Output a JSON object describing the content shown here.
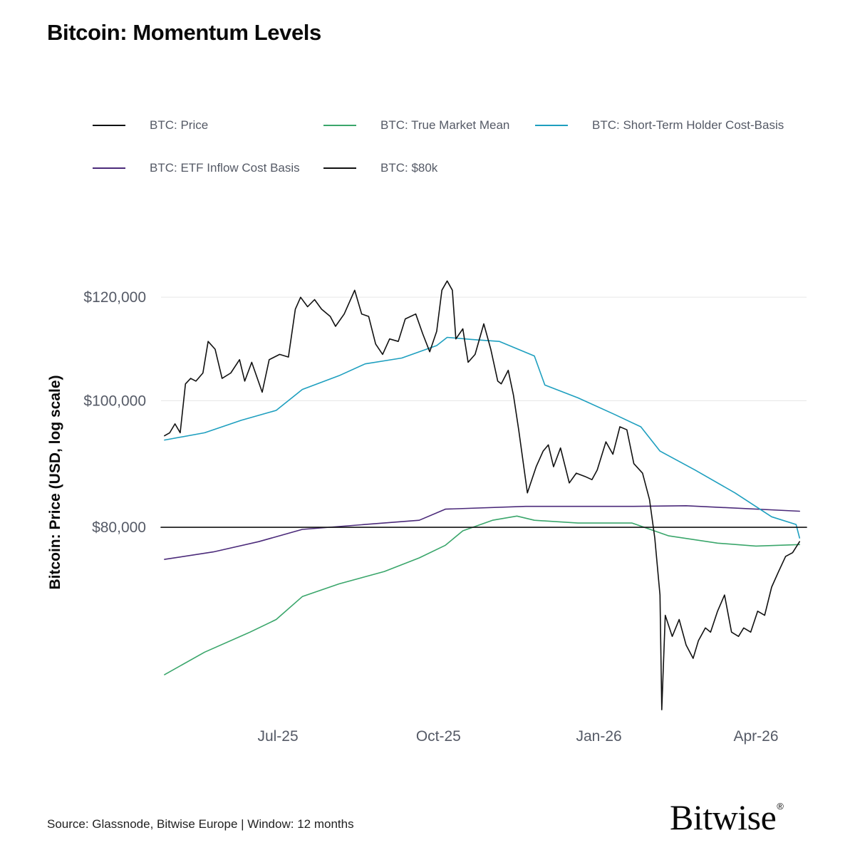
{
  "header": {
    "title": "Bitcoin: Momentum Levels"
  },
  "footer": {
    "source": "Source: Glassnode, Bitwise Europe | Window: 12 months",
    "logo": "Bitwise",
    "logo_mark": "®"
  },
  "colors": {
    "price": "#111111",
    "tmm": "#3aa66b",
    "sth": "#1e9fbf",
    "etf": "#4b2a7a",
    "level80k": "#111111",
    "grid": "#e6e6e6",
    "tick": "#555a66"
  },
  "legend": [
    {
      "label": "BTC: Price",
      "color": "#111111"
    },
    {
      "label": "BTC: True Market Mean",
      "color": "#3aa66b"
    },
    {
      "label": "BTC: Short-Term Holder Cost-Basis",
      "color": "#1e9fbf"
    },
    {
      "label": "BTC: ETF Inflow Cost Basis",
      "color": "#4b2a7a"
    },
    {
      "label": "BTC: $80k",
      "color": "#111111"
    }
  ],
  "chart_data": {
    "type": "line",
    "title": "Bitcoin: Momentum Levels",
    "xlabel": "",
    "ylabel": "Bitcoin: Price (USD, log scale)",
    "y_scale": "log",
    "ylim": [
      57000,
      127000
    ],
    "xlim": [
      "2025-04-25",
      "2026-04-30"
    ],
    "grid": true,
    "legend_position": "top",
    "x_ticks": [
      {
        "date": "2025-07-01",
        "label": "Jul-25"
      },
      {
        "date": "2025-10-01",
        "label": "Oct-25"
      },
      {
        "date": "2026-01-01",
        "label": "Jan-26"
      },
      {
        "date": "2026-04-01",
        "label": "Apr-26"
      }
    ],
    "y_ticks": [
      {
        "value": 80000,
        "label": "$80,000"
      },
      {
        "value": 100000,
        "label": "$100,000"
      },
      {
        "value": 120000,
        "label": "$120,000"
      }
    ],
    "series": [
      {
        "name": "BTC: Price",
        "key": "price",
        "points": [
          [
            "2025-04-27",
            94000
          ],
          [
            "2025-04-30",
            94500
          ],
          [
            "2025-05-03",
            96000
          ],
          [
            "2025-05-06",
            94500
          ],
          [
            "2025-05-09",
            103000
          ],
          [
            "2025-05-12",
            104000
          ],
          [
            "2025-05-15",
            103500
          ],
          [
            "2025-05-19",
            105000
          ],
          [
            "2025-05-22",
            111000
          ],
          [
            "2025-05-26",
            109500
          ],
          [
            "2025-05-30",
            104000
          ],
          [
            "2025-06-04",
            105000
          ],
          [
            "2025-06-09",
            107500
          ],
          [
            "2025-06-12",
            103500
          ],
          [
            "2025-06-16",
            107000
          ],
          [
            "2025-06-22",
            101500
          ],
          [
            "2025-06-26",
            107500
          ],
          [
            "2025-07-02",
            108500
          ],
          [
            "2025-07-07",
            108000
          ],
          [
            "2025-07-11",
            117500
          ],
          [
            "2025-07-14",
            120000
          ],
          [
            "2025-07-18",
            118000
          ],
          [
            "2025-07-22",
            119500
          ],
          [
            "2025-07-26",
            117500
          ],
          [
            "2025-07-31",
            116000
          ],
          [
            "2025-08-03",
            114000
          ],
          [
            "2025-08-08",
            116500
          ],
          [
            "2025-08-14",
            121500
          ],
          [
            "2025-08-18",
            116500
          ],
          [
            "2025-08-22",
            116000
          ],
          [
            "2025-08-26",
            110500
          ],
          [
            "2025-08-30",
            108500
          ],
          [
            "2025-09-03",
            111500
          ],
          [
            "2025-09-08",
            111000
          ],
          [
            "2025-09-12",
            115500
          ],
          [
            "2025-09-18",
            116500
          ],
          [
            "2025-09-22",
            112500
          ],
          [
            "2025-09-26",
            109000
          ],
          [
            "2025-09-30",
            113000
          ],
          [
            "2025-10-03",
            121500
          ],
          [
            "2025-10-06",
            123500
          ],
          [
            "2025-10-09",
            121500
          ],
          [
            "2025-10-11",
            111500
          ],
          [
            "2025-10-15",
            113500
          ],
          [
            "2025-10-18",
            107000
          ],
          [
            "2025-10-22",
            108500
          ],
          [
            "2025-10-27",
            114500
          ],
          [
            "2025-10-31",
            109500
          ],
          [
            "2025-11-04",
            103500
          ],
          [
            "2025-11-06",
            103000
          ],
          [
            "2025-11-10",
            105500
          ],
          [
            "2025-11-13",
            101000
          ],
          [
            "2025-11-16",
            95000
          ],
          [
            "2025-11-21",
            85000
          ],
          [
            "2025-11-26",
            89000
          ],
          [
            "2025-11-30",
            91500
          ],
          [
            "2025-12-03",
            92500
          ],
          [
            "2025-12-06",
            89000
          ],
          [
            "2025-12-10",
            92000
          ],
          [
            "2025-12-15",
            86500
          ],
          [
            "2025-12-19",
            88000
          ],
          [
            "2025-12-24",
            87500
          ],
          [
            "2025-12-28",
            87000
          ],
          [
            "2025-12-31",
            88500
          ],
          [
            "2026-01-05",
            93000
          ],
          [
            "2026-01-09",
            91000
          ],
          [
            "2026-01-13",
            95500
          ],
          [
            "2026-01-17",
            95000
          ],
          [
            "2026-01-21",
            89500
          ],
          [
            "2026-01-26",
            88000
          ],
          [
            "2026-01-30",
            84000
          ],
          [
            "2026-02-02",
            78500
          ],
          [
            "2026-02-05",
            71000
          ],
          [
            "2026-02-06",
            58000
          ],
          [
            "2026-02-08",
            68500
          ],
          [
            "2026-02-12",
            66000
          ],
          [
            "2026-02-16",
            68000
          ],
          [
            "2026-02-20",
            65000
          ],
          [
            "2026-02-24",
            63500
          ],
          [
            "2026-02-27",
            65500
          ],
          [
            "2026-03-03",
            67000
          ],
          [
            "2026-03-06",
            66500
          ],
          [
            "2026-03-10",
            69000
          ],
          [
            "2026-03-14",
            71000
          ],
          [
            "2026-03-18",
            66500
          ],
          [
            "2026-03-22",
            66000
          ],
          [
            "2026-03-25",
            67000
          ],
          [
            "2026-03-29",
            66500
          ],
          [
            "2026-04-02",
            69000
          ],
          [
            "2026-04-06",
            68500
          ],
          [
            "2026-04-10",
            72000
          ],
          [
            "2026-04-14",
            74000
          ],
          [
            "2026-04-18",
            76000
          ],
          [
            "2026-04-22",
            76500
          ],
          [
            "2026-04-26",
            78000
          ]
        ]
      },
      {
        "name": "BTC: True Market Mean",
        "key": "tmm",
        "points": [
          [
            "2025-04-27",
            61700
          ],
          [
            "2025-05-20",
            64200
          ],
          [
            "2025-06-15",
            66500
          ],
          [
            "2025-06-30",
            68000
          ],
          [
            "2025-07-15",
            70800
          ],
          [
            "2025-08-05",
            72400
          ],
          [
            "2025-08-31",
            74000
          ],
          [
            "2025-09-20",
            75800
          ],
          [
            "2025-10-05",
            77500
          ],
          [
            "2025-10-15",
            79500
          ],
          [
            "2025-11-01",
            81000
          ],
          [
            "2025-11-15",
            81600
          ],
          [
            "2025-11-25",
            81000
          ],
          [
            "2025-12-20",
            80600
          ],
          [
            "2026-01-20",
            80600
          ],
          [
            "2026-02-10",
            78800
          ],
          [
            "2026-03-10",
            77800
          ],
          [
            "2026-04-01",
            77400
          ],
          [
            "2026-04-26",
            77600
          ]
        ]
      },
      {
        "name": "BTC: Short-Term Holder Cost-Basis",
        "key": "sth",
        "points": [
          [
            "2025-04-27",
            93300
          ],
          [
            "2025-05-20",
            94500
          ],
          [
            "2025-06-10",
            96600
          ],
          [
            "2025-06-30",
            98300
          ],
          [
            "2025-07-15",
            102000
          ],
          [
            "2025-08-05",
            104500
          ],
          [
            "2025-08-20",
            106700
          ],
          [
            "2025-09-10",
            107800
          ],
          [
            "2025-09-30",
            110200
          ],
          [
            "2025-10-06",
            111800
          ],
          [
            "2025-10-20",
            111400
          ],
          [
            "2025-11-05",
            111000
          ],
          [
            "2025-11-25",
            108200
          ],
          [
            "2025-12-01",
            102800
          ],
          [
            "2025-12-20",
            100500
          ],
          [
            "2026-01-10",
            97600
          ],
          [
            "2026-01-25",
            95500
          ],
          [
            "2026-02-05",
            91500
          ],
          [
            "2026-02-25",
            88500
          ],
          [
            "2026-03-20",
            85000
          ],
          [
            "2026-04-10",
            81500
          ],
          [
            "2026-04-24",
            80400
          ],
          [
            "2026-04-26",
            78500
          ]
        ]
      },
      {
        "name": "BTC: ETF Inflow Cost Basis",
        "key": "etf",
        "points": [
          [
            "2025-04-27",
            75600
          ],
          [
            "2025-05-25",
            76600
          ],
          [
            "2025-06-20",
            78000
          ],
          [
            "2025-07-15",
            79700
          ],
          [
            "2025-08-20",
            80400
          ],
          [
            "2025-09-20",
            81000
          ],
          [
            "2025-10-05",
            82600
          ],
          [
            "2025-11-20",
            83000
          ],
          [
            "2026-01-20",
            83000
          ],
          [
            "2026-02-20",
            83100
          ],
          [
            "2026-04-26",
            82300
          ]
        ]
      },
      {
        "name": "BTC: $80k",
        "key": "level80k",
        "points": [
          [
            "2025-04-27",
            80000
          ],
          [
            "2026-04-26",
            80000
          ]
        ]
      }
    ]
  }
}
